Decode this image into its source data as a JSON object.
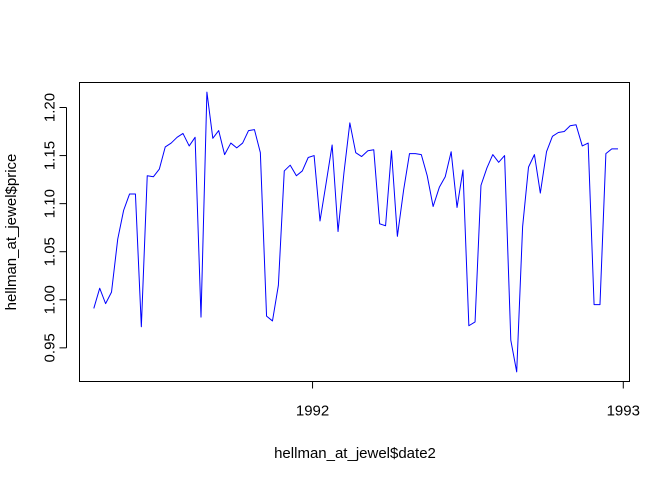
{
  "chart_data": {
    "type": "line",
    "xlabel": "hellman_at_jewel$date2",
    "ylabel": "hellman_at_jewel$price",
    "x_unit": "year",
    "xlim": [
      1991.25,
      1993.02
    ],
    "ylim": [
      0.915,
      1.226
    ],
    "x_ticks": [
      {
        "value": 1992,
        "label": "1992"
      },
      {
        "value": 1993,
        "label": "1993"
      }
    ],
    "y_ticks": [
      {
        "value": 0.95,
        "label": "0.95"
      },
      {
        "value": 1.0,
        "label": "1.00"
      },
      {
        "value": 1.05,
        "label": "1.05"
      },
      {
        "value": 1.1,
        "label": "1.10"
      },
      {
        "value": 1.15,
        "label": "1.15"
      },
      {
        "value": 1.2,
        "label": "1.20"
      }
    ],
    "line_color": "#0000ff",
    "axis_color": "#000000",
    "grid": false,
    "series": [
      {
        "x": [
          1991.296,
          1991.315,
          1991.334,
          1991.353,
          1991.373,
          1991.392,
          1991.411,
          1991.43,
          1991.449,
          1991.468,
          1991.488,
          1991.507,
          1991.526,
          1991.545,
          1991.564,
          1991.583,
          1991.603,
          1991.622,
          1991.641,
          1991.66,
          1991.679,
          1991.698,
          1991.717,
          1991.737,
          1991.756,
          1991.775,
          1991.794,
          1991.813,
          1991.832,
          1991.852,
          1991.871,
          1991.89,
          1991.909,
          1991.928,
          1991.948,
          1991.967,
          1991.986,
          1992.005,
          1992.024,
          1992.043,
          1992.063,
          1992.082,
          1992.101,
          1992.12,
          1992.139,
          1992.158,
          1992.178,
          1992.197,
          1992.216,
          1992.235,
          1992.254,
          1992.273,
          1992.293,
          1992.312,
          1992.331,
          1992.35,
          1992.369,
          1992.388,
          1992.408,
          1992.427,
          1992.446,
          1992.465,
          1992.484,
          1992.503,
          1992.523,
          1992.542,
          1992.561,
          1992.58,
          1992.599,
          1992.618,
          1992.638,
          1992.657,
          1992.676,
          1992.695,
          1992.714,
          1992.733,
          1992.753,
          1992.772,
          1992.791,
          1992.81,
          1992.829,
          1992.848,
          1992.868,
          1992.887,
          1992.906,
          1992.925,
          1992.944,
          1992.963,
          1992.983
        ],
        "y": [
          0.991,
          1.012,
          0.996,
          1.008,
          1.063,
          1.093,
          1.11,
          1.11,
          0.972,
          1.129,
          1.128,
          1.136,
          1.159,
          1.163,
          1.169,
          1.173,
          1.16,
          1.169,
          0.982,
          1.216,
          1.168,
          1.176,
          1.151,
          1.163,
          1.158,
          1.163,
          1.176,
          1.177,
          1.153,
          0.983,
          0.978,
          1.015,
          1.134,
          1.14,
          1.129,
          1.134,
          1.148,
          1.15,
          1.082,
          1.12,
          1.161,
          1.071,
          1.132,
          1.184,
          1.153,
          1.149,
          1.155,
          1.156,
          1.079,
          1.077,
          1.155,
          1.066,
          1.114,
          1.152,
          1.152,
          1.151,
          1.129,
          1.097,
          1.117,
          1.128,
          1.154,
          1.096,
          1.135,
          0.973,
          0.977,
          1.119,
          1.137,
          1.151,
          1.143,
          1.15,
          0.958,
          0.925,
          1.076,
          1.138,
          1.151,
          1.111,
          1.154,
          1.17,
          1.174,
          1.175,
          1.181,
          1.182,
          1.16,
          1.163,
          0.995,
          0.995,
          1.152,
          1.157,
          1.157
        ]
      }
    ]
  }
}
